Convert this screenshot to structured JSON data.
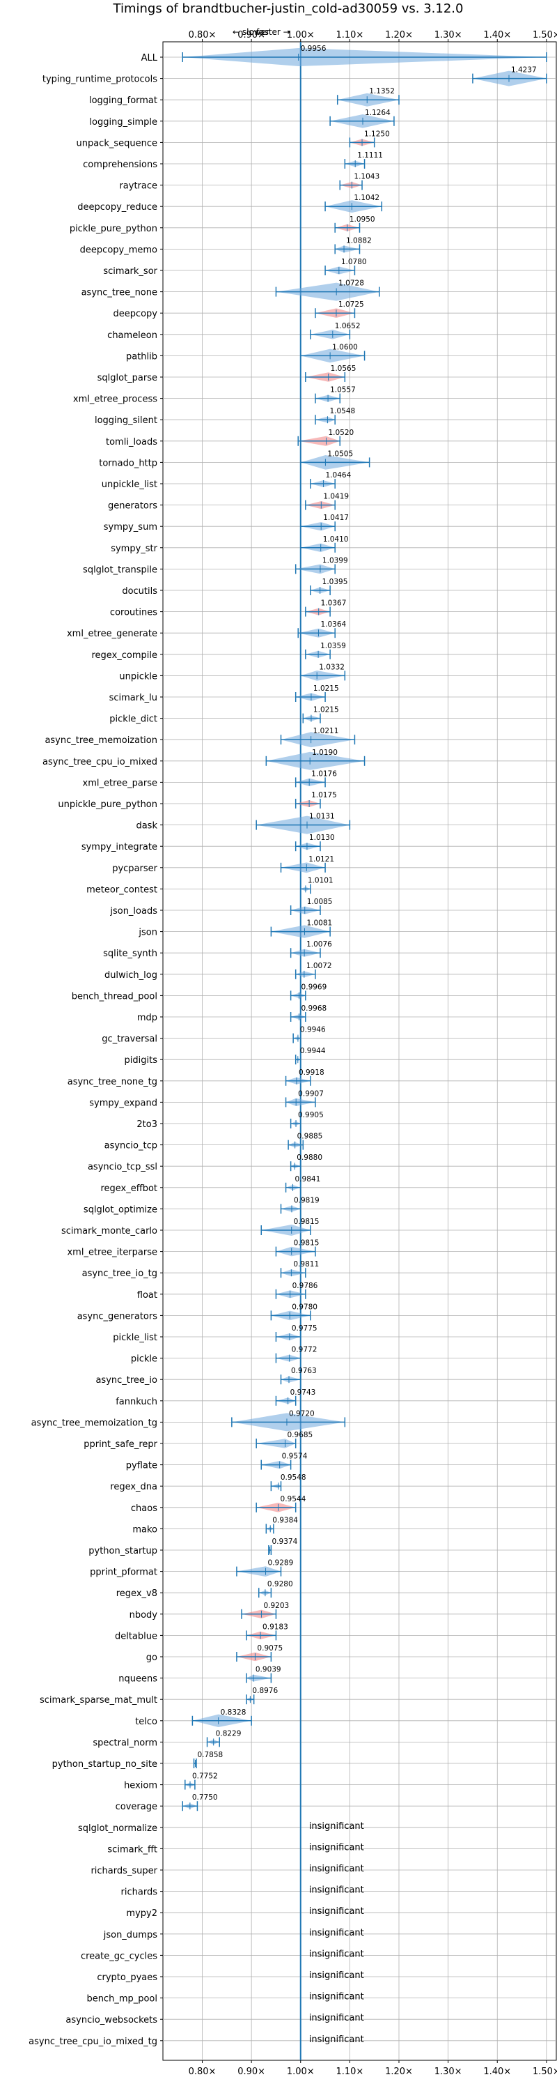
{
  "chart_data": {
    "type": "violin",
    "title": "Timings of brandtbucher-justin_cold-ad30059 vs. 3.12.0",
    "annotation_slower": "← slower",
    "annotation_faster": "faster →",
    "xlim": [
      0.72,
      1.52
    ],
    "xticks": [
      0.8,
      0.9,
      1.0,
      1.1,
      1.2,
      1.3,
      1.4,
      1.5
    ],
    "xtick_labels": [
      "0.80×",
      "0.90×",
      "1.00×",
      "1.10×",
      "1.20×",
      "1.30×",
      "1.40×",
      "1.50×"
    ],
    "grid": true,
    "insignificant_label": "insignificant",
    "colors": {
      "faster": "#6fa8dc",
      "slower": "#f08080",
      "line": "#1f77b4",
      "grid": "#b0b0b0"
    },
    "benchmarks": [
      {
        "name": "ALL",
        "value": 0.9956,
        "label": "0.9956",
        "lo": 0.76,
        "hi": 1.5,
        "color": "blue"
      },
      {
        "name": "typing_runtime_protocols",
        "value": 1.4237,
        "label": "1.4237",
        "lo": 1.35,
        "hi": 1.5,
        "color": "blue"
      },
      {
        "name": "logging_format",
        "value": 1.1352,
        "label": "1.1352",
        "lo": 1.075,
        "hi": 1.2,
        "color": "blue"
      },
      {
        "name": "logging_simple",
        "value": 1.1264,
        "label": "1.1264",
        "lo": 1.06,
        "hi": 1.19,
        "color": "blue"
      },
      {
        "name": "unpack_sequence",
        "value": 1.125,
        "label": "1.1250",
        "lo": 1.1,
        "hi": 1.15,
        "color": "red"
      },
      {
        "name": "comprehensions",
        "value": 1.1111,
        "label": "1.1111",
        "lo": 1.09,
        "hi": 1.13,
        "color": "blue"
      },
      {
        "name": "raytrace",
        "value": 1.1043,
        "label": "1.1043",
        "lo": 1.08,
        "hi": 1.125,
        "color": "red"
      },
      {
        "name": "deepcopy_reduce",
        "value": 1.1042,
        "label": "1.1042",
        "lo": 1.05,
        "hi": 1.165,
        "color": "blue"
      },
      {
        "name": "pickle_pure_python",
        "value": 1.095,
        "label": "1.0950",
        "lo": 1.07,
        "hi": 1.12,
        "color": "red"
      },
      {
        "name": "deepcopy_memo",
        "value": 1.0882,
        "label": "1.0882",
        "lo": 1.07,
        "hi": 1.12,
        "color": "blue"
      },
      {
        "name": "scimark_sor",
        "value": 1.078,
        "label": "1.0780",
        "lo": 1.05,
        "hi": 1.11,
        "color": "blue"
      },
      {
        "name": "async_tree_none",
        "value": 1.0728,
        "label": "1.0728",
        "lo": 0.95,
        "hi": 1.16,
        "color": "blue"
      },
      {
        "name": "deepcopy",
        "value": 1.0725,
        "label": "1.0725",
        "lo": 1.03,
        "hi": 1.11,
        "color": "red"
      },
      {
        "name": "chameleon",
        "value": 1.0652,
        "label": "1.0652",
        "lo": 1.02,
        "hi": 1.1,
        "color": "blue"
      },
      {
        "name": "pathlib",
        "value": 1.06,
        "label": "1.0600",
        "lo": 1.0,
        "hi": 1.13,
        "color": "blue"
      },
      {
        "name": "sqlglot_parse",
        "value": 1.0565,
        "label": "1.0565",
        "lo": 1.01,
        "hi": 1.09,
        "color": "red"
      },
      {
        "name": "xml_etree_process",
        "value": 1.0557,
        "label": "1.0557",
        "lo": 1.03,
        "hi": 1.08,
        "color": "blue"
      },
      {
        "name": "logging_silent",
        "value": 1.0548,
        "label": "1.0548",
        "lo": 1.03,
        "hi": 1.07,
        "color": "blue"
      },
      {
        "name": "tomli_loads",
        "value": 1.052,
        "label": "1.0520",
        "lo": 0.995,
        "hi": 1.08,
        "color": "red"
      },
      {
        "name": "tornado_http",
        "value": 1.0505,
        "label": "1.0505",
        "lo": 1.0,
        "hi": 1.14,
        "color": "blue"
      },
      {
        "name": "unpickle_list",
        "value": 1.0464,
        "label": "1.0464",
        "lo": 1.02,
        "hi": 1.07,
        "color": "blue"
      },
      {
        "name": "generators",
        "value": 1.0419,
        "label": "1.0419",
        "lo": 1.01,
        "hi": 1.07,
        "color": "red"
      },
      {
        "name": "sympy_sum",
        "value": 1.0417,
        "label": "1.0417",
        "lo": 1.0,
        "hi": 1.07,
        "color": "blue"
      },
      {
        "name": "sympy_str",
        "value": 1.041,
        "label": "1.0410",
        "lo": 1.0,
        "hi": 1.07,
        "color": "blue"
      },
      {
        "name": "sqlglot_transpile",
        "value": 1.0399,
        "label": "1.0399",
        "lo": 0.99,
        "hi": 1.07,
        "color": "blue"
      },
      {
        "name": "docutils",
        "value": 1.0395,
        "label": "1.0395",
        "lo": 1.02,
        "hi": 1.06,
        "color": "blue"
      },
      {
        "name": "coroutines",
        "value": 1.0367,
        "label": "1.0367",
        "lo": 1.01,
        "hi": 1.06,
        "color": "red"
      },
      {
        "name": "xml_etree_generate",
        "value": 1.0364,
        "label": "1.0364",
        "lo": 0.995,
        "hi": 1.07,
        "color": "blue"
      },
      {
        "name": "regex_compile",
        "value": 1.0359,
        "label": "1.0359",
        "lo": 1.01,
        "hi": 1.06,
        "color": "blue"
      },
      {
        "name": "unpickle",
        "value": 1.0332,
        "label": "1.0332",
        "lo": 1.0,
        "hi": 1.09,
        "color": "blue"
      },
      {
        "name": "scimark_lu",
        "value": 1.0215,
        "label": "1.0215",
        "lo": 0.99,
        "hi": 1.05,
        "color": "blue"
      },
      {
        "name": "pickle_dict",
        "value": 1.0215,
        "label": "1.0215",
        "lo": 1.005,
        "hi": 1.04,
        "color": "blue"
      },
      {
        "name": "async_tree_memoization",
        "value": 1.0211,
        "label": "1.0211",
        "lo": 0.96,
        "hi": 1.11,
        "color": "blue"
      },
      {
        "name": "async_tree_cpu_io_mixed",
        "value": 1.019,
        "label": "1.0190",
        "lo": 0.93,
        "hi": 1.13,
        "color": "blue"
      },
      {
        "name": "xml_etree_parse",
        "value": 1.0176,
        "label": "1.0176",
        "lo": 0.99,
        "hi": 1.05,
        "color": "blue"
      },
      {
        "name": "unpickle_pure_python",
        "value": 1.0175,
        "label": "1.0175",
        "lo": 0.99,
        "hi": 1.04,
        "color": "red"
      },
      {
        "name": "dask",
        "value": 1.0131,
        "label": "1.0131",
        "lo": 0.91,
        "hi": 1.1,
        "color": "blue"
      },
      {
        "name": "sympy_integrate",
        "value": 1.013,
        "label": "1.0130",
        "lo": 0.99,
        "hi": 1.04,
        "color": "blue"
      },
      {
        "name": "pycparser",
        "value": 1.0121,
        "label": "1.0121",
        "lo": 0.96,
        "hi": 1.05,
        "color": "blue"
      },
      {
        "name": "meteor_contest",
        "value": 1.0101,
        "label": "1.0101",
        "lo": 1.0,
        "hi": 1.02,
        "color": "blue"
      },
      {
        "name": "json_loads",
        "value": 1.0085,
        "label": "1.0085",
        "lo": 0.98,
        "hi": 1.04,
        "color": "blue"
      },
      {
        "name": "json",
        "value": 1.0081,
        "label": "1.0081",
        "lo": 0.94,
        "hi": 1.06,
        "color": "blue"
      },
      {
        "name": "sqlite_synth",
        "value": 1.0076,
        "label": "1.0076",
        "lo": 0.98,
        "hi": 1.04,
        "color": "blue"
      },
      {
        "name": "dulwich_log",
        "value": 1.0072,
        "label": "1.0072",
        "lo": 0.99,
        "hi": 1.03,
        "color": "blue"
      },
      {
        "name": "bench_thread_pool",
        "value": 0.9969,
        "label": "0.9969",
        "lo": 0.98,
        "hi": 1.01,
        "color": "blue"
      },
      {
        "name": "mdp",
        "value": 0.9968,
        "label": "0.9968",
        "lo": 0.98,
        "hi": 1.01,
        "color": "blue"
      },
      {
        "name": "gc_traversal",
        "value": 0.9946,
        "label": "0.9946",
        "lo": 0.985,
        "hi": 1.0,
        "color": "blue"
      },
      {
        "name": "pidigits",
        "value": 0.9944,
        "label": "0.9944",
        "lo": 0.99,
        "hi": 1.0,
        "color": "blue"
      },
      {
        "name": "async_tree_none_tg",
        "value": 0.9918,
        "label": "0.9918",
        "lo": 0.97,
        "hi": 1.02,
        "color": "blue"
      },
      {
        "name": "sympy_expand",
        "value": 0.9907,
        "label": "0.9907",
        "lo": 0.97,
        "hi": 1.03,
        "color": "blue"
      },
      {
        "name": "2to3",
        "value": 0.9905,
        "label": "0.9905",
        "lo": 0.98,
        "hi": 1.0,
        "color": "blue"
      },
      {
        "name": "asyncio_tcp",
        "value": 0.9885,
        "label": "0.9885",
        "lo": 0.975,
        "hi": 1.005,
        "color": "blue"
      },
      {
        "name": "asyncio_tcp_ssl",
        "value": 0.988,
        "label": "0.9880",
        "lo": 0.98,
        "hi": 1.0,
        "color": "blue"
      },
      {
        "name": "regex_effbot",
        "value": 0.9841,
        "label": "0.9841",
        "lo": 0.97,
        "hi": 1.0,
        "color": "blue"
      },
      {
        "name": "sqlglot_optimize",
        "value": 0.9819,
        "label": "0.9819",
        "lo": 0.96,
        "hi": 1.0,
        "color": "blue"
      },
      {
        "name": "scimark_monte_carlo",
        "value": 0.9815,
        "label": "0.9815",
        "lo": 0.92,
        "hi": 1.02,
        "color": "blue"
      },
      {
        "name": "xml_etree_iterparse",
        "value": 0.9815,
        "label": "0.9815",
        "lo": 0.95,
        "hi": 1.03,
        "color": "blue"
      },
      {
        "name": "async_tree_io_tg",
        "value": 0.9811,
        "label": "0.9811",
        "lo": 0.96,
        "hi": 1.01,
        "color": "blue"
      },
      {
        "name": "float",
        "value": 0.9786,
        "label": "0.9786",
        "lo": 0.95,
        "hi": 1.01,
        "color": "blue"
      },
      {
        "name": "async_generators",
        "value": 0.978,
        "label": "0.9780",
        "lo": 0.94,
        "hi": 1.02,
        "color": "blue"
      },
      {
        "name": "pickle_list",
        "value": 0.9775,
        "label": "0.9775",
        "lo": 0.95,
        "hi": 1.0,
        "color": "blue"
      },
      {
        "name": "pickle",
        "value": 0.9772,
        "label": "0.9772",
        "lo": 0.95,
        "hi": 1.0,
        "color": "blue"
      },
      {
        "name": "async_tree_io",
        "value": 0.9763,
        "label": "0.9763",
        "lo": 0.96,
        "hi": 1.0,
        "color": "blue"
      },
      {
        "name": "fannkuch",
        "value": 0.9743,
        "label": "0.9743",
        "lo": 0.95,
        "hi": 0.99,
        "color": "blue"
      },
      {
        "name": "async_tree_memoization_tg",
        "value": 0.972,
        "label": "0.9720",
        "lo": 0.86,
        "hi": 1.09,
        "color": "blue"
      },
      {
        "name": "pprint_safe_repr",
        "value": 0.9685,
        "label": "0.9685",
        "lo": 0.91,
        "hi": 0.99,
        "color": "blue"
      },
      {
        "name": "pyflate",
        "value": 0.9574,
        "label": "0.9574",
        "lo": 0.92,
        "hi": 0.98,
        "color": "blue"
      },
      {
        "name": "regex_dna",
        "value": 0.9548,
        "label": "0.9548",
        "lo": 0.94,
        "hi": 0.96,
        "color": "blue"
      },
      {
        "name": "chaos",
        "value": 0.9544,
        "label": "0.9544",
        "lo": 0.91,
        "hi": 0.99,
        "color": "red"
      },
      {
        "name": "mako",
        "value": 0.9384,
        "label": "0.9384",
        "lo": 0.93,
        "hi": 0.945,
        "color": "blue"
      },
      {
        "name": "python_startup",
        "value": 0.9374,
        "label": "0.9374",
        "lo": 0.935,
        "hi": 0.94,
        "color": "blue"
      },
      {
        "name": "pprint_pformat",
        "value": 0.9289,
        "label": "0.9289",
        "lo": 0.87,
        "hi": 0.96,
        "color": "blue"
      },
      {
        "name": "regex_v8",
        "value": 0.928,
        "label": "0.9280",
        "lo": 0.915,
        "hi": 0.94,
        "color": "blue"
      },
      {
        "name": "nbody",
        "value": 0.9203,
        "label": "0.9203",
        "lo": 0.88,
        "hi": 0.95,
        "color": "red"
      },
      {
        "name": "deltablue",
        "value": 0.9183,
        "label": "0.9183",
        "lo": 0.89,
        "hi": 0.95,
        "color": "red"
      },
      {
        "name": "go",
        "value": 0.9075,
        "label": "0.9075",
        "lo": 0.87,
        "hi": 0.94,
        "color": "red"
      },
      {
        "name": "nqueens",
        "value": 0.9039,
        "label": "0.9039",
        "lo": 0.89,
        "hi": 0.94,
        "color": "blue"
      },
      {
        "name": "scimark_sparse_mat_mult",
        "value": 0.8976,
        "label": "0.8976",
        "lo": 0.89,
        "hi": 0.905,
        "color": "blue"
      },
      {
        "name": "telco",
        "value": 0.8328,
        "label": "0.8328",
        "lo": 0.78,
        "hi": 0.9,
        "color": "blue"
      },
      {
        "name": "spectral_norm",
        "value": 0.8229,
        "label": "0.8229",
        "lo": 0.81,
        "hi": 0.835,
        "color": "blue"
      },
      {
        "name": "python_startup_no_site",
        "value": 0.7858,
        "label": "0.7858",
        "lo": 0.783,
        "hi": 0.788,
        "color": "blue"
      },
      {
        "name": "hexiom",
        "value": 0.7752,
        "label": "0.7752",
        "lo": 0.765,
        "hi": 0.785,
        "color": "blue"
      },
      {
        "name": "coverage",
        "value": 0.775,
        "label": "0.7750",
        "lo": 0.76,
        "hi": 0.79,
        "color": "blue"
      },
      {
        "name": "sqlglot_normalize",
        "insignificant": true
      },
      {
        "name": "scimark_fft",
        "insignificant": true
      },
      {
        "name": "richards_super",
        "insignificant": true
      },
      {
        "name": "richards",
        "insignificant": true
      },
      {
        "name": "mypy2",
        "insignificant": true
      },
      {
        "name": "json_dumps",
        "insignificant": true
      },
      {
        "name": "create_gc_cycles",
        "insignificant": true
      },
      {
        "name": "crypto_pyaes",
        "insignificant": true
      },
      {
        "name": "bench_mp_pool",
        "insignificant": true
      },
      {
        "name": "asyncio_websockets",
        "insignificant": true
      },
      {
        "name": "async_tree_cpu_io_mixed_tg",
        "insignificant": true
      }
    ]
  }
}
